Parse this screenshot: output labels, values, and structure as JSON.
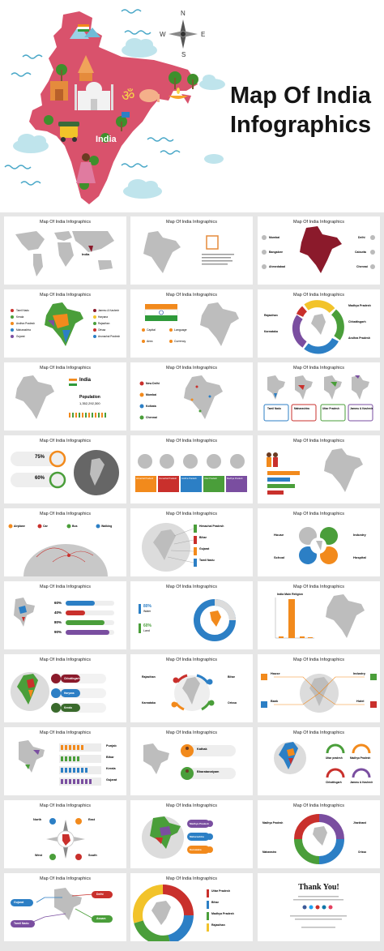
{
  "hero": {
    "title_line1": "Map Of India",
    "title_line2": "Infographics",
    "map_label": "India",
    "compass": {
      "n": "N",
      "s": "S",
      "e": "E",
      "w": "W"
    }
  },
  "thumbnails": {
    "slide_title": "Map Of India Infographics",
    "s1": {
      "label": "India"
    },
    "s3": {
      "labels": [
        "Mumbai",
        "Bangalore",
        "Ahmedabad",
        "Delhi",
        "Calcutta",
        "Chennai"
      ]
    },
    "s4": {
      "labels": [
        "Tamil Nadu",
        "Kerala",
        "Andhra Pradesh",
        "Maharashtra",
        "Gujarat",
        "Jammu & Kashmir",
        "Haryana",
        "Rajasthan",
        "Orissa",
        "Arunachal Pradesh"
      ]
    },
    "s5": {
      "labels": [
        "Capital",
        "Language",
        "Area",
        "Currency"
      ]
    },
    "s6": {
      "labels": [
        "Madhya Pradesh",
        "Chhattisgarh",
        "Andhra Pradesh",
        "Rajasthan",
        "Karnataka"
      ]
    },
    "s7": {
      "country": "India",
      "population_label": "Population",
      "population_value": "1,352,292,300"
    },
    "s8": {
      "labels": [
        "New Delhi",
        "Mumbai",
        "Kolkata",
        "Chennai"
      ]
    },
    "s9": {
      "labels": [
        "Tamil Nadu",
        "Maharashtra",
        "Uttar Pradesh",
        "Jammu & Kashmir"
      ]
    },
    "s10": {
      "values": [
        "75%",
        "60%"
      ]
    },
    "s11": {
      "labels": [
        "Himachal Pradesh",
        "Arunachal Pradesh",
        "Andhra Pradesh",
        "Uttar Pradesh",
        "Madhya Pradesh"
      ]
    },
    "s13": {
      "labels": [
        "Airplane",
        "Car",
        "Bus",
        "Walking"
      ]
    },
    "s14": {
      "labels": [
        "Himachal Pradesh",
        "Bihar",
        "Gujarat",
        "Tamil Nadu"
      ]
    },
    "s15": {
      "labels": [
        "House",
        "Industry",
        "School",
        "Hospital"
      ]
    },
    "s16": {
      "values": [
        "60%",
        "40%",
        "80%",
        "90%"
      ]
    },
    "s17": {
      "labels": [
        "Water",
        "Land"
      ],
      "values": [
        "80%",
        "60%"
      ]
    },
    "s18": {
      "title": "India Main Religion"
    },
    "s19": {
      "labels": [
        "Chhattisgarh",
        "Haryana",
        "Kerala"
      ]
    },
    "s20": {
      "labels": [
        "Rajasthan",
        "Bihar",
        "Karnataka",
        "Orissa"
      ]
    },
    "s21": {
      "labels": [
        "House",
        "Industry",
        "Bank",
        "Hotel"
      ]
    },
    "s22": {
      "labels": [
        "Punjab",
        "Bihar",
        "Kerala",
        "Gujarat"
      ]
    },
    "s23": {
      "labels": [
        "Kathak",
        "Bharatanatyam"
      ]
    },
    "s24": {
      "labels": [
        "Uttar pradesh",
        "Madhya Pradesh",
        "Chhattisgarh",
        "Jammu & Kashmir"
      ]
    },
    "s25": {
      "labels": [
        "North",
        "East",
        "West",
        "South"
      ]
    },
    "s26": {
      "labels": [
        "Madhya Pradesh",
        "Maharashtra",
        "Karnataka"
      ]
    },
    "s27": {
      "labels": [
        "Madhya Pradesh",
        "Jharkhand",
        "Maharastra",
        "Orissa"
      ]
    },
    "s28": {
      "labels": [
        "Delhi",
        "Gujarat",
        "Tamil Nadu",
        "Assam"
      ]
    },
    "s29": {
      "labels": [
        "Uttar Pradesh",
        "Bihar",
        "Madhya Pradesh",
        "Rajasthan"
      ]
    },
    "s30": {
      "title": "Thank You!"
    }
  },
  "colors": {
    "map_pink": "#d9526c",
    "grey_map": "#b8b8b8",
    "maroon": "#8b1a2b",
    "orange": "#f28a1c",
    "blue": "#2c7fc5",
    "green": "#4a9e3a",
    "purple": "#7a4ea0",
    "red": "#c9302c",
    "sky": "#bfe4ec"
  }
}
